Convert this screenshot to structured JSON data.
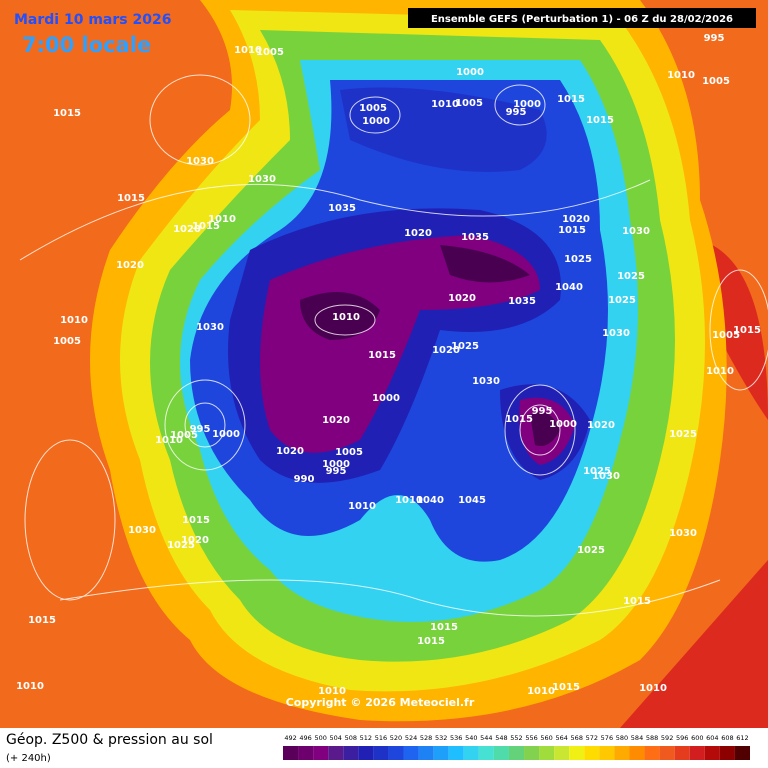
{
  "header": {
    "date": "Mardi 10 mars 2026",
    "time": "7:00 locale",
    "run": "Ensemble GEFS  (Perturbation 1)  -  06 Z du 28/02/2026"
  },
  "footer": {
    "title": "Géop. Z500 & pression au sol",
    "lead": "(+ 240h)",
    "copyright": "Copyright © 2026 Meteociel.fr"
  },
  "scale": {
    "values": [
      492,
      496,
      500,
      504,
      508,
      512,
      516,
      520,
      524,
      528,
      532,
      536,
      540,
      544,
      548,
      552,
      556,
      560,
      564,
      568,
      572,
      576,
      580,
      584,
      588,
      592,
      596,
      600,
      604,
      608,
      612
    ],
    "colors": [
      "#5a005a",
      "#6e006e",
      "#800080",
      "#5a1a8c",
      "#3c1ea0",
      "#2020b4",
      "#1e32c8",
      "#1e46dc",
      "#1e64f0",
      "#1e82f5",
      "#1ea0fa",
      "#1ebeff",
      "#32d2f0",
      "#46e1d2",
      "#50dcaa",
      "#64d278",
      "#82d250",
      "#a0dc3c",
      "#c8e632",
      "#f0f014",
      "#ffdc00",
      "#ffc800",
      "#ffaa00",
      "#ff8c00",
      "#ff6e14",
      "#f05a1e",
      "#e63c1e",
      "#d21e1e",
      "#b40a0a",
      "#8c0000",
      "#500000"
    ]
  },
  "isobars": [
    1010,
    1005,
    995,
    1000,
    1010,
    1005,
    1015,
    1005,
    1000,
    1010,
    1005,
    1000,
    995,
    1015,
    1015,
    1030,
    1030,
    1015,
    1035,
    1010,
    1020,
    1015,
    1020,
    1035,
    1020,
    1015,
    1030,
    1025,
    1020,
    1040,
    1025,
    1020,
    1035,
    1025,
    1010,
    1030,
    1010,
    1030,
    1005,
    1015,
    1025,
    1020,
    1010,
    1030,
    1000,
    995,
    1015,
    1000,
    1020,
    1020,
    1025,
    995,
    1000,
    1005,
    1010,
    1020,
    1005,
    1000,
    995,
    990,
    1025,
    1030,
    1010,
    1040,
    1045,
    1010,
    1030,
    1030,
    1015,
    1020,
    1025,
    1025,
    1015,
    1015,
    1015,
    1015,
    1010,
    1010,
    1010,
    1015,
    1010,
    1005,
    1015
  ]
}
